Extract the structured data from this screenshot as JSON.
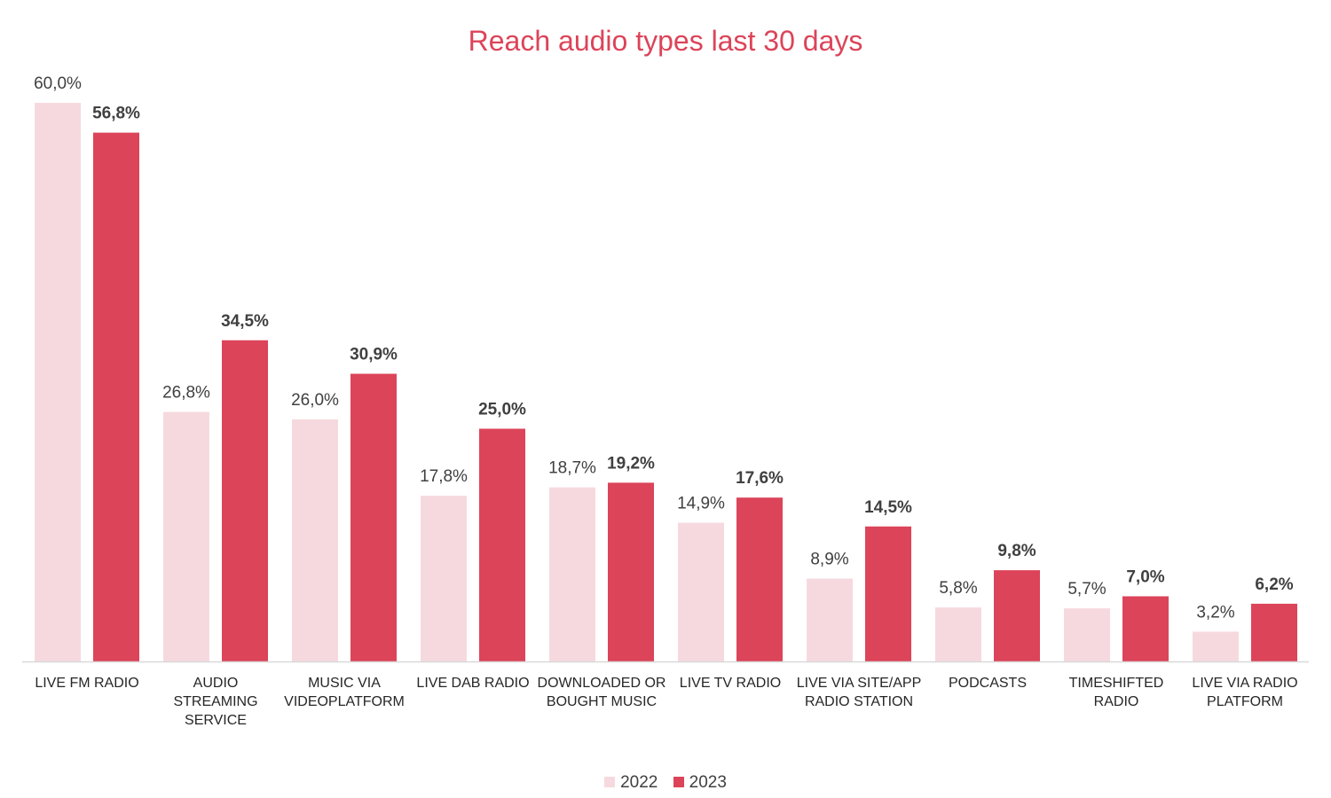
{
  "chart_data": {
    "type": "bar",
    "title": "Reach audio types last 30 days",
    "categories": [
      "LIVE FM RADIO",
      "AUDIO STREAMING SERVICE",
      "MUSIC VIA VIDEOPLATFORM",
      "LIVE DAB RADIO",
      "DOWNLOADED OR BOUGHT MUSIC",
      "LIVE TV RADIO",
      "LIVE VIA SITE/APP RADIO STATION",
      "PODCASTS",
      "TIMESHIFTED RADIO",
      "LIVE VIA RADIO PLATFORM"
    ],
    "category_lines": [
      [
        "LIVE FM RADIO"
      ],
      [
        "AUDIO",
        "STREAMING",
        "SERVICE"
      ],
      [
        "MUSIC VIA",
        "VIDEOPLATFORM"
      ],
      [
        "LIVE DAB RADIO"
      ],
      [
        "DOWNLOADED OR",
        "BOUGHT MUSIC"
      ],
      [
        "LIVE TV RADIO"
      ],
      [
        "LIVE VIA SITE/APP",
        "RADIO STATION"
      ],
      [
        "PODCASTS"
      ],
      [
        "TIMESHIFTED",
        "RADIO"
      ],
      [
        "LIVE VIA RADIO",
        "PLATFORM"
      ]
    ],
    "series": [
      {
        "name": "2022",
        "color": "#F6D9DE",
        "values": [
          60.0,
          26.8,
          26.0,
          17.8,
          18.7,
          14.9,
          8.9,
          5.8,
          5.7,
          3.2
        ],
        "labels": [
          "60,0%",
          "26,8%",
          "26,0%",
          "17,8%",
          "18,7%",
          "14,9%",
          "8,9%",
          "5,8%",
          "5,7%",
          "3,2%"
        ],
        "label_weight": "normal"
      },
      {
        "name": "2023",
        "color": "#DC4459",
        "values": [
          56.8,
          34.5,
          30.9,
          25.0,
          19.2,
          17.6,
          14.5,
          9.8,
          7.0,
          6.2
        ],
        "labels": [
          "56,8%",
          "34,5%",
          "30,9%",
          "25,0%",
          "19,2%",
          "17,6%",
          "14,5%",
          "9,8%",
          "7,0%",
          "6,2%"
        ],
        "label_weight": "bold"
      }
    ],
    "ylim": [
      0,
      60
    ],
    "grid": false,
    "legend_position": "bottom",
    "axis_color": "#D9D9D9",
    "label_color": "#404040"
  }
}
